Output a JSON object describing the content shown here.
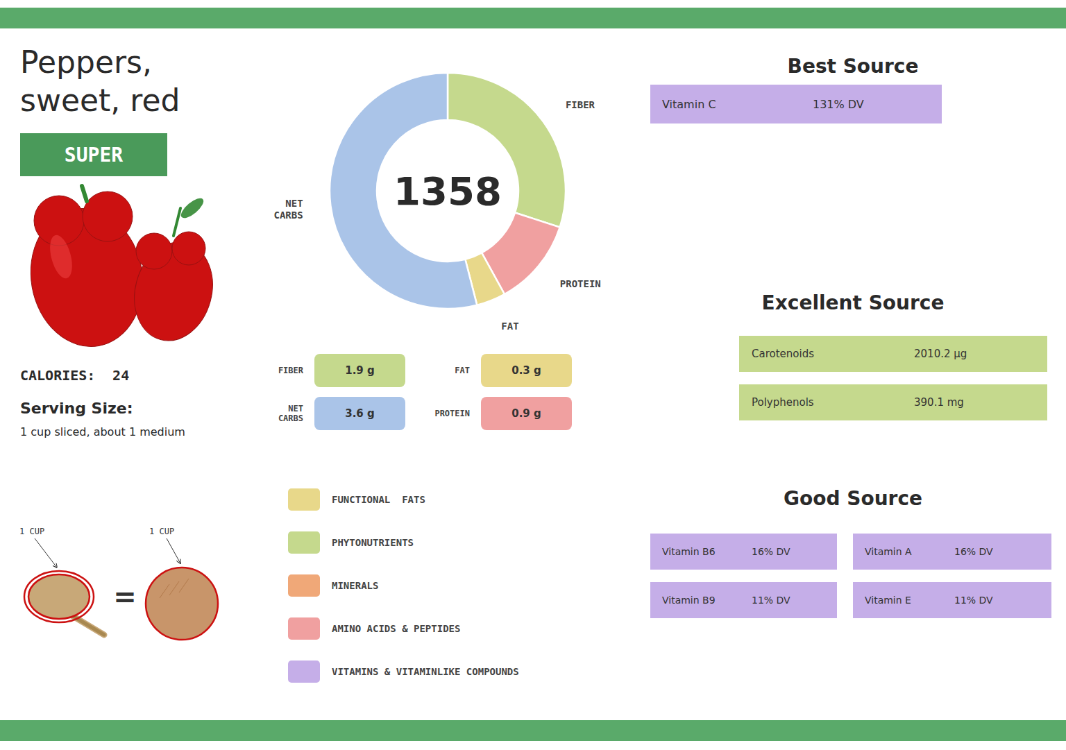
{
  "chart_data": {
    "type": "donut",
    "title": "Peppers,",
    "subtitle": "sweet, red",
    "badge": "SUPER",
    "calories_label": "CALORIES:",
    "calories_value": 24,
    "serving_size_title": "Serving Size:",
    "serving_size_text": "1 cup sliced, about 1 medium",
    "measure_labels": [
      "1 CUP",
      "1 CUP"
    ],
    "measure_equals": "=",
    "center_label": "1358",
    "categories": [
      "FIBER",
      "PROTEIN",
      "FAT",
      "NET\nCARBS"
    ],
    "values": [
      30,
      12,
      4,
      54
    ],
    "colors": [
      "#c5d98d",
      "#f0a0a0",
      "#e8d88a",
      "#aac4e8"
    ],
    "macros": [
      {
        "label": "FIBER",
        "value": "1.9 g",
        "color": "#c5d98d"
      },
      {
        "label": "FAT",
        "value": "0.3 g",
        "color": "#e8d88a"
      },
      {
        "label": "NET\nCARBS",
        "value": "3.6 g",
        "color": "#aac4e8"
      },
      {
        "label": "PROTEIN",
        "value": "0.9 g",
        "color": "#f0a0a0"
      }
    ],
    "nutrient_key": [
      {
        "label": "FUNCTIONAL  FATS",
        "color": "#e8d88a"
      },
      {
        "label": "PHYTONUTRIENTS",
        "color": "#c5d98d"
      },
      {
        "label": "MINERALS",
        "color": "#f0a878"
      },
      {
        "label": "AMINO ACIDS & PEPTIDES",
        "color": "#f0a0a0"
      },
      {
        "label": "VITAMINS & VITAMINLIKE COMPOUNDS",
        "color": "#c5aee8"
      }
    ],
    "sources": [
      {
        "title": "Best Source",
        "items": [
          {
            "label": "Vitamin C",
            "value": "131% DV",
            "color": "#c5aee8"
          }
        ]
      },
      {
        "title": "Excellent Source",
        "items": [
          {
            "label": "Carotenoids",
            "value": "2010.2 μg",
            "color": "#c5d98d"
          },
          {
            "label": "Polyphenols",
            "value": "390.1 mg",
            "color": "#c5d98d"
          }
        ]
      },
      {
        "title": "Good Source",
        "columns": [
          [
            {
              "label": "Vitamin B6",
              "value": "16% DV",
              "color": "#c5aee8"
            },
            {
              "label": "Vitamin B9",
              "value": "11% DV",
              "color": "#c5aee8"
            }
          ],
          [
            {
              "label": "Vitamin A",
              "value": "16% DV",
              "color": "#c5aee8"
            },
            {
              "label": "Vitamin E",
              "value": "11% DV",
              "color": "#c5aee8"
            }
          ]
        ]
      }
    ]
  }
}
